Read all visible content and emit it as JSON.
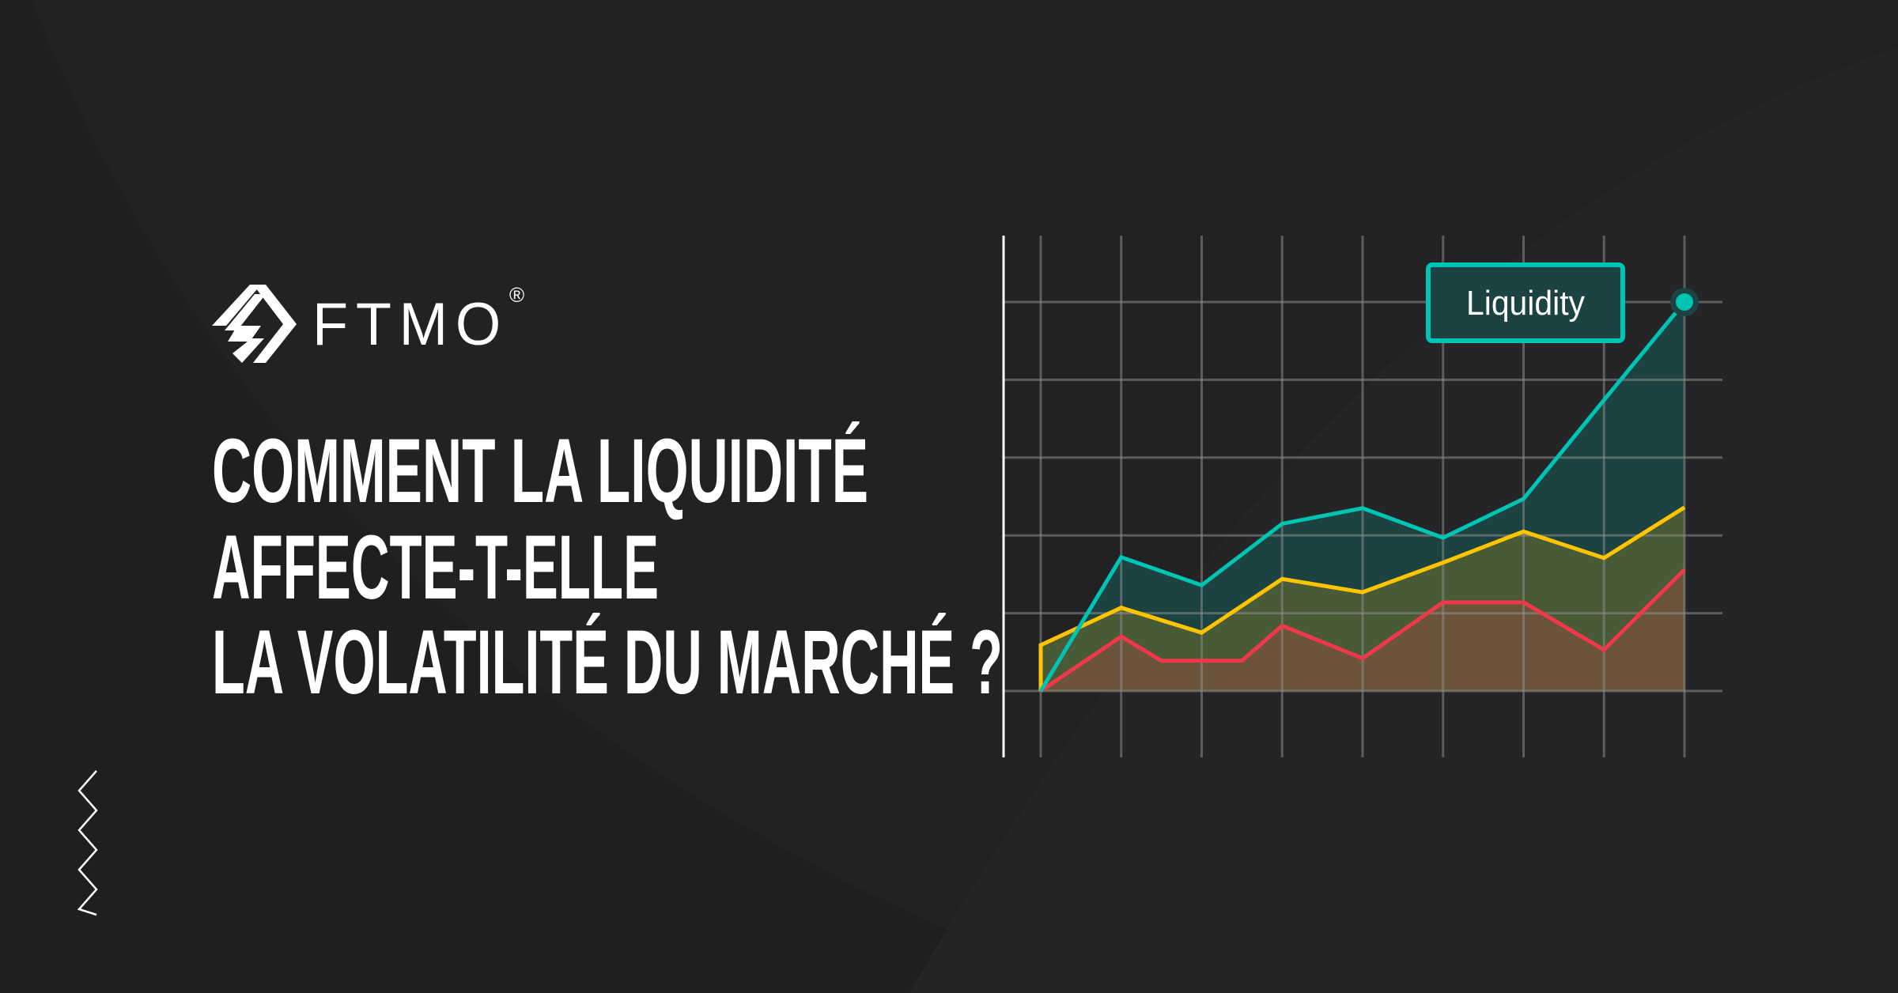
{
  "brand": {
    "name": "FTMO",
    "registered_mark": "®"
  },
  "title": {
    "lines": [
      "COMMENT LA LIQUIDITÉ",
      "AFFECTE-T-ELLE",
      "LA VOLATILITÉ DU MARCHÉ ?"
    ]
  },
  "decoration": {
    "zigzag_icon": "zigzag-chevrons-icon"
  },
  "colors": {
    "background": "#222224",
    "teal": "#00c4b3",
    "yellow": "#ffc400",
    "red": "#f0384a",
    "text": "#ffffff"
  },
  "chart_data": {
    "type": "area",
    "label": "Liquidity",
    "grid": true,
    "ylim": [
      0,
      5
    ],
    "xlim": [
      0,
      8
    ],
    "series": [
      {
        "color": "#00c4b3",
        "x": [
          0,
          1,
          2,
          3,
          4,
          5,
          6,
          7,
          8
        ],
        "values": [
          0,
          1.72,
          1.36,
          2.15,
          2.35,
          1.97,
          2.47,
          3.74,
          5.0
        ]
      },
      {
        "color": "#ffc400",
        "x": [
          0,
          1,
          2,
          3,
          4,
          5,
          6,
          7,
          8
        ],
        "values": [
          0.59,
          1.07,
          0.75,
          1.44,
          1.27,
          1.65,
          2.05,
          1.71,
          2.36
        ]
      },
      {
        "color": "#f0384a",
        "x": [
          0,
          1,
          1.5,
          2.5,
          3,
          4,
          5,
          6,
          7,
          8
        ],
        "values": [
          0,
          0.7,
          0.39,
          0.39,
          0.84,
          0.42,
          1.14,
          1.14,
          0.53,
          1.56
        ]
      }
    ]
  }
}
